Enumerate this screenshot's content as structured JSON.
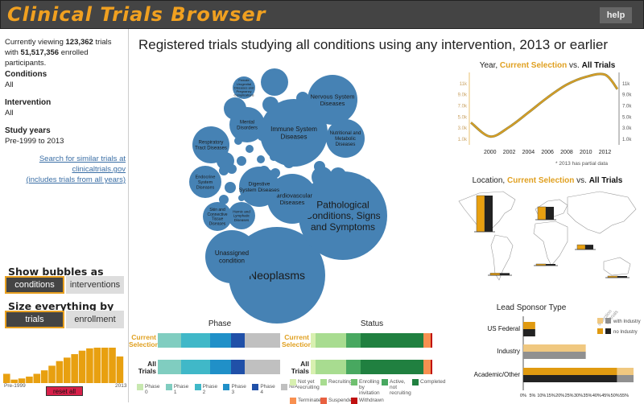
{
  "header": {
    "title": "Clinical Trials Browser",
    "help_label": "help"
  },
  "sidebar": {
    "viewing_prefix": "Currently viewing ",
    "trials_count": "123,362",
    "viewing_mid": " trials with ",
    "participants": "51,517,356",
    "viewing_suffix": " enrolled participants.",
    "conditions_label": "Conditions",
    "conditions_value": "All",
    "intervention_label": "Intervention",
    "intervention_value": "All",
    "years_label": "Study years",
    "years_value": "Pre-1999 to 2013",
    "link_line1": "Search for similar trials at clinicaltrials.gov",
    "link_line2": "(includes trials from all years)",
    "bubbles_label": "Show bubbles as",
    "bubbles_options": [
      "conditions",
      "interventions"
    ],
    "bubbles_selected": "conditions",
    "size_label": "Size everything by",
    "size_options": [
      "trials",
      "enrollment"
    ],
    "size_selected": "trials",
    "histogram": {
      "values": [
        4,
        1.5,
        2,
        2.8,
        4,
        5.5,
        7.5,
        9.5,
        11,
        12.5,
        14,
        15,
        15.3,
        15.3,
        15.3,
        11.5
      ],
      "start_label": "Pre-1999",
      "end_label": "2013"
    },
    "reset_label": "reset all"
  },
  "main_title": "Registered trials studying all conditions using any intervention, 2013 or earlier",
  "bubbles": [
    {
      "label": "Neoplasms",
      "size": 3600
    },
    {
      "label": "Pathological Conditions, Signs and Symptoms",
      "size": 3000
    },
    {
      "label": "Immune System Diseases",
      "size": 1760
    },
    {
      "label": "Unassigned condition",
      "size": 1090
    },
    {
      "label": "Cardiovascular Diseases",
      "size": 960
    },
    {
      "label": "Nervous System Diseases",
      "size": 960
    },
    {
      "label": "Digestive System Diseases",
      "size": 625
    },
    {
      "label": "Nutritional and Metabolic Diseases",
      "size": 576
    },
    {
      "label": "Respiratory Tract Diseases",
      "size": 530
    },
    {
      "label": "Mental Disorders",
      "size": 484
    },
    {
      "label": "Endocrine System Diseases",
      "size": 400
    },
    {
      "label": "Skin and Connective Tissue Diseases",
      "size": 324
    },
    {
      "label": "Hemic and Lymphatic Diseases",
      "size": 289
    },
    {
      "label": "Female Urogenital Diseases and Pregnancy Complications",
      "size": 196
    }
  ],
  "year_chart": {
    "title_prefix": "Year, ",
    "title_sel": "Current Selection",
    "title_mid": " vs. ",
    "title_all": "All Trials",
    "x": [
      1998,
      2000,
      2002,
      2004,
      2006,
      2008,
      2010,
      2012,
      2013.3
    ],
    "values": [
      4000,
      1500,
      3200,
      5800,
      8500,
      10800,
      12200,
      12600,
      10000
    ],
    "x_ticks": [
      "2000",
      "2002",
      "2004",
      "2006",
      "2008",
      "2010",
      "2012"
    ],
    "y_ticks": [
      "1.0k",
      "3.0k",
      "5.0k",
      "7.0k",
      "9.0k",
      "11k"
    ],
    "note": "* 2013 has partial data",
    "color": "#e0a020"
  },
  "map": {
    "title_prefix": "Location, ",
    "title_sel": "Current Selection",
    "title_mid": " vs. ",
    "title_all": "All Trials",
    "regions": [
      {
        "name": "North America",
        "sel": 0.45,
        "all": 0.45
      },
      {
        "name": "Europe",
        "sel": 0.24,
        "all": 0.24
      },
      {
        "name": "Asia",
        "sel": 0.12,
        "all": 0.12
      },
      {
        "name": "South America",
        "sel": 0.04,
        "all": 0.04
      },
      {
        "name": "Africa",
        "sel": 0.02,
        "all": 0.02
      },
      {
        "name": "Australia",
        "sel": 0.02,
        "all": 0.02
      }
    ]
  },
  "phase": {
    "title": "Phase",
    "rows": [
      "Current Selection",
      "All Trials"
    ],
    "segments": [
      {
        "name": "Phase 0",
        "color": "#c8e8b0",
        "pct": 0
      },
      {
        "name": "Phase 1",
        "color": "#80cdc0",
        "pct": 19
      },
      {
        "name": "Phase 2",
        "color": "#40b8c8",
        "pct": 24
      },
      {
        "name": "Phase 3",
        "color": "#2090c8",
        "pct": 17
      },
      {
        "name": "Phase 4",
        "color": "#2050a8",
        "pct": 11
      },
      {
        "name": "N/A",
        "color": "#c0c0c0",
        "pct": 29
      }
    ]
  },
  "status": {
    "title": "Status",
    "rows": [
      "Current Selection",
      "All Trials"
    ],
    "segments": [
      {
        "name": "Not yet recruiting",
        "color": "#d8f0b0",
        "pct": 4
      },
      {
        "name": "Recruiting",
        "color": "#a8dc90",
        "pct": 25
      },
      {
        "name": "Enrolling by invitation",
        "color": "#70c070",
        "pct": 0
      },
      {
        "name": "Active, not recruiting",
        "color": "#48a860",
        "pct": 12
      },
      {
        "name": "Completed",
        "color": "#208040",
        "pct": 51
      },
      {
        "name": "Terminated",
        "color": "#f89050",
        "pct": 6
      },
      {
        "name": "Suspended",
        "color": "#e86040",
        "pct": 0
      },
      {
        "name": "Withdrawn",
        "color": "#c01010",
        "pct": 1.5
      }
    ]
  },
  "sponsor": {
    "title": "Lead Sponsor Type",
    "col_labels": [
      "selection",
      "all trials"
    ],
    "legend": [
      "with Industry",
      "no Industry"
    ],
    "categories": [
      "US Federal",
      "Industry",
      "Academic/Other"
    ],
    "no_industry": [
      6.5,
      0,
      51
    ],
    "with_industry": [
      0,
      34,
      9
    ],
    "x_ticks": [
      "0%",
      "5%",
      "10%",
      "15%",
      "20%",
      "25%",
      "30%",
      "35%",
      "40%",
      "45%",
      "50%",
      "55%"
    ],
    "xmax": 60,
    "colors": {
      "sel_no": "#e09a10",
      "sel_with": "#f0c880",
      "all_no": "#222222",
      "all_with": "#909090"
    }
  }
}
